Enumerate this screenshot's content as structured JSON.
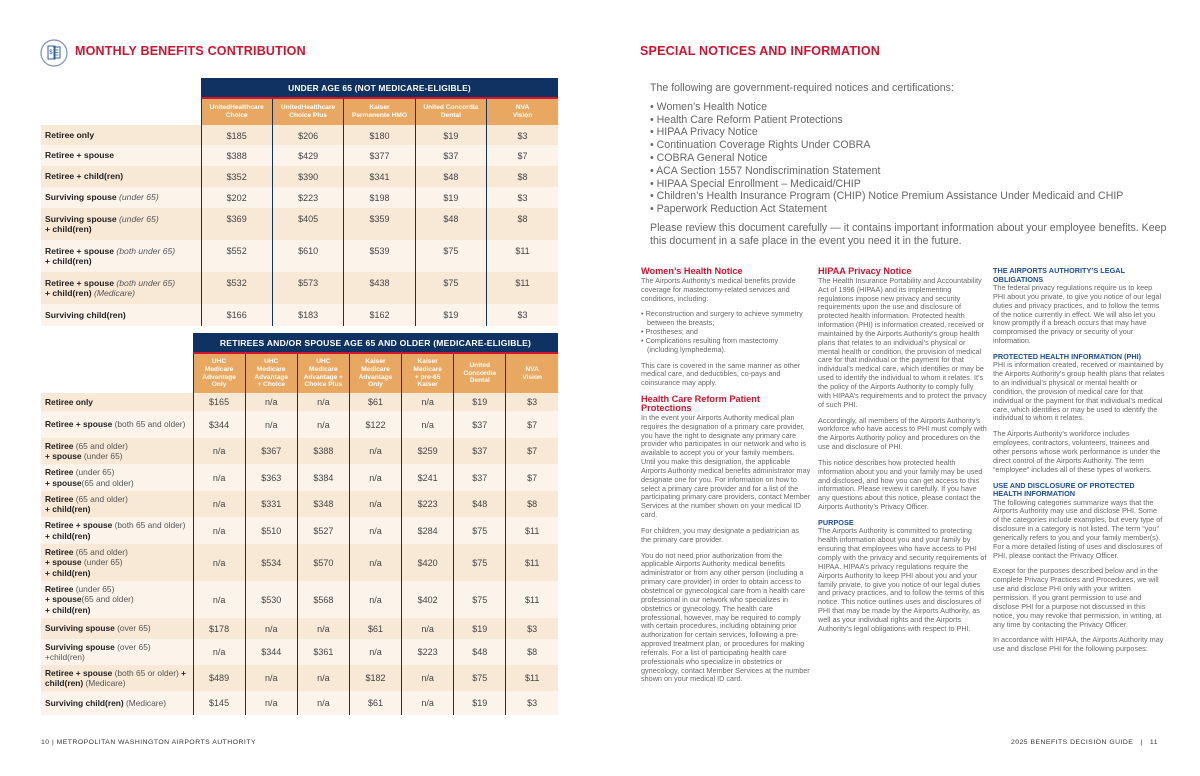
{
  "left": {
    "title": "MONTHLY BENEFITS CONTRIBUTION",
    "icon": "dollar-document-icon",
    "table1": {
      "band": "UNDER AGE 65 (NOT MEDICARE-ELIGIBLE)",
      "columns": [
        "UnitedHealthcare\nChoice",
        "UnitedHealthcare\nChoice Plus",
        "Kaiser\nPermanente HMO",
        "United Concordia\nDental",
        "NVA\nVision"
      ],
      "rows": [
        {
          "label": [
            {
              "b": "Retiree only"
            }
          ],
          "values": [
            "$185",
            "$206",
            "$180",
            "$19",
            "$3"
          ]
        },
        {
          "label": [
            {
              "b": "Retiree + spouse"
            }
          ],
          "values": [
            "$388",
            "$429",
            "$377",
            "$37",
            "$7"
          ]
        },
        {
          "label": [
            {
              "b": "Retiree + child(ren)"
            }
          ],
          "values": [
            "$352",
            "$390",
            "$341",
            "$48",
            "$8"
          ]
        },
        {
          "label": [
            {
              "b": "Surviving spouse "
            },
            {
              "i": "(under 65)"
            }
          ],
          "values": [
            "$202",
            "$223",
            "$198",
            "$19",
            "$3"
          ]
        },
        {
          "label": [
            {
              "b": "Surviving spouse "
            },
            {
              "i": "(under 65)\n"
            },
            {
              "b": "+ child(ren)"
            }
          ],
          "values": [
            "$369",
            "$405",
            "$359",
            "$48",
            "$8"
          ]
        },
        {
          "label": [
            {
              "b": "Retiree + spouse "
            },
            {
              "i": "(both under 65)\n"
            },
            {
              "b": "+ child(ren)"
            }
          ],
          "values": [
            "$552",
            "$610",
            "$539",
            "$75",
            "$11"
          ]
        },
        {
          "label": [
            {
              "b": "Retiree + spouse "
            },
            {
              "i": "(both under 65)\n"
            },
            {
              "b": "+ child(ren) "
            },
            {
              "i": "(Medicare)"
            }
          ],
          "values": [
            "$532",
            "$573",
            "$438",
            "$75",
            "$11"
          ]
        },
        {
          "label": [
            {
              "b": "Surviving child(ren)"
            }
          ],
          "values": [
            "$166",
            "$183",
            "$162",
            "$19",
            "$3"
          ]
        }
      ]
    },
    "table2": {
      "band": "RETIREES AND/OR SPOUSE AGE 65 AND OLDER (MEDICARE-ELIGIBLE)",
      "columns": [
        "UHC\nMedicare\nAdvantage\nOnly",
        "UHC\nMedicare\nAdvantage\n+ Choice",
        "UHC\nMedicare\nAdvantage +\nChoice Plus",
        "Kaiser\nMedicare\nAdvantage\nOnly",
        "Kaiser\nMedicare\n+ pre-65\nKaiser",
        "United\nConcordia\nDental",
        "NVA\nVision"
      ],
      "rows": [
        {
          "label": [
            {
              "b": "Retiree only"
            }
          ],
          "values": [
            "$165",
            "n/a",
            "n/a",
            "$61",
            "n/a",
            "$19",
            "$3"
          ]
        },
        {
          "label": [
            {
              "b": "Retiree + spouse "
            },
            {
              "n": "(both 65 and older)"
            }
          ],
          "values": [
            "$344",
            "n/a",
            "n/a",
            "$122",
            "n/a",
            "$37",
            "$7"
          ]
        },
        {
          "label": [
            {
              "b": "Retiree "
            },
            {
              "n": "(65 and older)\n"
            },
            {
              "b": "+ spouse "
            },
            {
              "n": "(under 65)"
            }
          ],
          "values": [
            "n/a",
            "$367",
            "$388",
            "n/a",
            "$259",
            "$37",
            "$7"
          ]
        },
        {
          "label": [
            {
              "b": "Retiree "
            },
            {
              "n": "(under 65)\n"
            },
            {
              "b": "+ spouse"
            },
            {
              "n": "(65 and older)"
            }
          ],
          "values": [
            "n/a",
            "$363",
            "$384",
            "n/a",
            "$241",
            "$37",
            "$7"
          ]
        },
        {
          "label": [
            {
              "b": "Retiree "
            },
            {
              "n": "(65 and older)\n"
            },
            {
              "b": "+ child(ren)"
            }
          ],
          "values": [
            "n/a",
            "$331",
            "$348",
            "n/a",
            "$223",
            "$48",
            "$8"
          ]
        },
        {
          "label": [
            {
              "b": "Retiree + spouse "
            },
            {
              "n": "(both 65 and older) "
            },
            {
              "b": "+ child(ren)"
            }
          ],
          "values": [
            "n/a",
            "$510",
            "$527",
            "n/a",
            "$284",
            "$75",
            "$11"
          ]
        },
        {
          "label": [
            {
              "b": "Retiree "
            },
            {
              "n": "(65 and older)\n"
            },
            {
              "b": "+ spouse "
            },
            {
              "n": "(under 65)\n"
            },
            {
              "b": "+ child(ren)"
            }
          ],
          "values": [
            "n/a",
            "$534",
            "$570",
            "n/a",
            "$420",
            "$75",
            "$11"
          ]
        },
        {
          "label": [
            {
              "b": "Retiree "
            },
            {
              "n": "(under 65)\n"
            },
            {
              "b": "+ spouse"
            },
            {
              "n": "(65 and older)\n"
            },
            {
              "b": "+ child(ren)"
            }
          ],
          "values": [
            "n/a",
            "$530",
            "$568",
            "n/a",
            "$402",
            "$75",
            "$11"
          ]
        },
        {
          "label": [
            {
              "b": "Surviving spouse "
            },
            {
              "n": "(over 65)"
            }
          ],
          "values": [
            "$178",
            "n/a",
            "n/a",
            "$61",
            "n/a",
            "$19",
            "$3"
          ]
        },
        {
          "label": [
            {
              "b": "Surviving spouse "
            },
            {
              "n": "(over 65)\n+child(ren)"
            }
          ],
          "values": [
            "n/a",
            "$344",
            "$361",
            "n/a",
            "$223",
            "$48",
            "$8"
          ]
        },
        {
          "label": [
            {
              "b": "Retiree + spouse "
            },
            {
              "n": "(both 65 or older) "
            },
            {
              "b": "+ child(ren) "
            },
            {
              "n": "(Medicare)"
            }
          ],
          "values": [
            "$489",
            "n/a",
            "n/a",
            "$182",
            "n/a",
            "$75",
            "$11"
          ]
        },
        {
          "label": [
            {
              "b": "Surviving child(ren) "
            },
            {
              "n": "(Medicare)"
            }
          ],
          "values": [
            "$145",
            "n/a",
            "n/a",
            "$61",
            "n/a",
            "$19",
            "$3"
          ]
        }
      ]
    },
    "footer": "10   |   METROPOLITAN WASHINGTON AIRPORTS AUTHORITY"
  },
  "right": {
    "title": "SPECIAL NOTICES AND INFORMATION",
    "intro": "The following are government-required notices and certifications:",
    "notices": [
      "Women’s Health Notice",
      "Health Care Reform Patient Protections",
      "HIPAA Privacy Notice",
      "Continuation Coverage Rights Under COBRA",
      "COBRA General Notice",
      "ACA Section 1557 Nondiscrimination Statement",
      "HIPAA Special Enrollment – Medicaid/CHIP",
      "Children’s Health Insurance Program (CHIP) Notice Premium Assistance Under Medicaid and CHIP",
      "Paperwork Reduction Act Statement"
    ],
    "review": "Please review this document carefully — it contains important information about your employee benefits. Keep this document in a safe place in the event you need it in the future.",
    "columns": [
      [
        {
          "h3": "Women’s Health Notice"
        },
        {
          "p": "The Airports Authority’s medical benefits provide coverage for mastectomy-related services and conditions, including:"
        },
        {
          "ul": [
            "Reconstruction and surgery to achieve symmetry between the breasts;",
            "Prostheses; and",
            "Complications resulting from mastectomy (including lymphedema)."
          ]
        },
        {
          "p": "This care is covered in the same manner as other medical care, and deductibles, co-pays and coinsurance may apply."
        },
        {
          "h3": "Health Care Reform Patient Protections"
        },
        {
          "p": "In the event your Airports Authority medical plan requires the designation of a primary care provider, you have the right to designate any primary care provider who participates in our network and who is available to accept you or your family members. Until you make this designation, the applicable Airports Authority medical benefits administrator may designate one for you. For information on how to select a primary care provider and for a list of the participating primary care providers, contact Member Services at the number shown on your medical ID card."
        },
        {
          "p": "For children, you may designate a pediatrician as the primary care provider."
        },
        {
          "p": "You do not need prior authorization from the applicable Airports Authority medical benefits administrator or from any other person (including a primary care provider) in order to obtain access to obstetrical or gynecological care from a health care professional in our network who specializes in obstetrics or gynecology. The health care professional, however, may be required to comply with certain procedures, including obtaining prior authorization for certain services, following a pre-approved treatment plan, or procedures for making referrals. For a list of participating health care professionals who specialize in obstetrics or gynecology, contact Member Services at the number shown on your medical ID card."
        }
      ],
      [
        {
          "h3": "HIPAA Privacy Notice"
        },
        {
          "p": "The Health Insurance Portability and Accountability Act of 1996 (HIPAA) and its implementing regulations impose new privacy and security requirements upon the use and disclosure of protected health information. Protected health information (PHI) is information created, received or maintained by the Airports Authority’s group health plans that relates to an individual’s physical or mental health or condition, the provision of medical care for that individual or the payment for that individual’s medical care, which identifies or may be used to identify the individual to whom it relates. It’s the policy of the Airports Authority to comply fully with HIPAA’s requirements and to protect the privacy of such PHI."
        },
        {
          "p": "Accordingly, all members of the Airports Authority’s workforce who have access to PHI must comply with the Airports Authority policy and procedures on the use and disclosure of PHI."
        },
        {
          "p": "This notice describes how protected health information about you and your family may be used and disclosed, and how you can get access to this information. Please review it carefully. If you have any questions about this notice, please contact the Airports Authority’s Privacy Officer."
        },
        {
          "h4": "PURPOSE"
        },
        {
          "p": "The Airports Authority is committed to protecting health information about you and your family by ensuring that employees who have access to PHI comply with the privacy and security requirements of HIPAA. HIPAA’s privacy regulations require the Airports Authority to keep PHI about you and your family private, to give you notice of our legal duties and privacy practices, and to follow the terms of this notice. This notice outlines uses and disclosures of PHI that may be made by the Airports Authority, as well as your individual rights and the Airports Authority’s legal obligations with respect to PHI."
        }
      ],
      [
        {
          "h4": "THE AIRPORTS AUTHORITY’S LEGAL OBLIGATIONS"
        },
        {
          "p": "The federal privacy regulations require us to keep PHI about you private, to give you notice of our legal duties and privacy practices, and to follow the terms of the notice currently in effect. We will also let you know promptly if a breach occurs that may have compromised the privacy or security of your information."
        },
        {
          "h4": "PROTECTED HEALTH INFORMATION (PHI)"
        },
        {
          "p": "PHI is information created, received or maintained by the Airports Authority’s group health plans that relates to an individual’s physical or mental health or condition, the provision of medical care for that individual or the payment for that individual’s medical care, which identifies or may be used to identify the individual to whom it relates."
        },
        {
          "p": "The Airports Authority’s workforce includes employees, contractors, volunteers, trainees and other persons whose work performance is under the direct control of the Airports Authority. The term “employee” includes all of these types of workers."
        },
        {
          "h4": "USE AND DISCLOSURE OF PROTECTED HEALTH INFORMATION"
        },
        {
          "p": "The following categories summarize ways that the Airports Authority may use and disclose PHI. Some of the categories include examples, but every type of disclosure in a category is not listed. The term “you” generically refers to you and your family member(s). For a more detailed listing of uses and disclosures of PHI, please contact the Privacy Officer."
        },
        {
          "p": "Except for the purposes described below and in the complete Privacy Practices and Procedures, we will use and disclose PHI only with your written permission. If you grant permission to use and disclose PHI for a purpose not discussed in this notice, you may revoke that permission, in writing, at any time by contacting the Privacy Officer."
        },
        {
          "p": "In accordance with HIPAA, the Airports Authority may use and disclose PHI for the following purposes:"
        }
      ]
    ],
    "footer": "2025 BENEFITS DECISION GUIDE   |   11"
  }
}
